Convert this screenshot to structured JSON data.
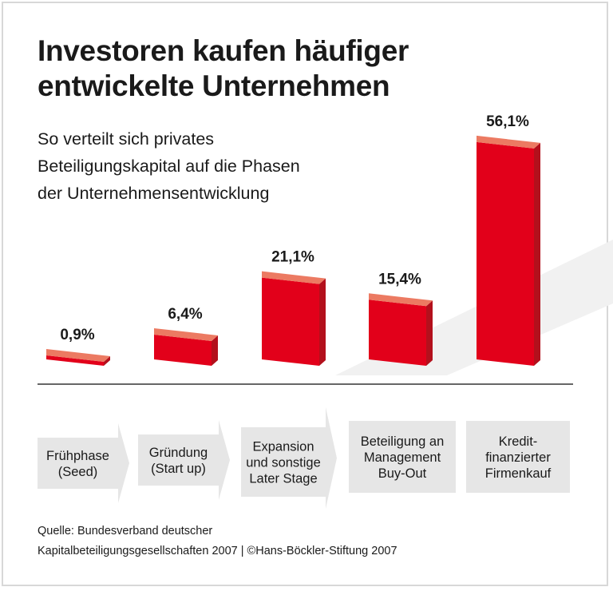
{
  "title_lines": [
    "Investoren kaufen häufiger",
    "entwickelte Unternehmen"
  ],
  "subtitle_lines": [
    "So verteilt sich privates",
    "Beteiligungskapital auf die Phasen",
    "der Unternehmensentwicklung"
  ],
  "source_lines": [
    "Quelle: Bundesverband deutscher",
    "Kapitalbeteiligungsgesellschaften 2007 | ©Hans-Böckler-Stiftung 2007"
  ],
  "chart_data": {
    "type": "bar",
    "categories": [
      [
        "Frühphase",
        "(Seed)"
      ],
      [
        "Gründung",
        "(Start up)"
      ],
      [
        "Expansion",
        "und sonstige",
        "Later Stage"
      ],
      [
        "Beteiligung an",
        "Management",
        "Buy-Out"
      ],
      [
        "Kredit-",
        "finanzierter",
        "Firmenkauf"
      ]
    ],
    "values": [
      0.9,
      6.4,
      21.1,
      15.4,
      56.1
    ],
    "data_labels": [
      "0,9%",
      "6,4%",
      "21,1%",
      "15,4%",
      "56,1%"
    ],
    "unit": "%",
    "colors": {
      "front": "#e2001a",
      "top": "#ec7a62",
      "side": "#b3101c",
      "category_box": "#e6e6e6"
    }
  }
}
